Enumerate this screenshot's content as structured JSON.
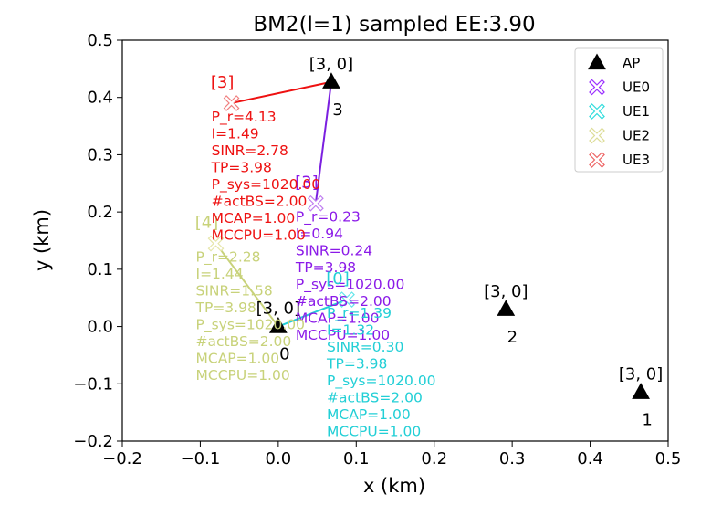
{
  "chart_data": {
    "type": "scatter",
    "title": "BM2(l=1) sampled EE:3.90",
    "xlabel": "x (km)",
    "ylabel": "y (km)",
    "xlim": [
      -0.2,
      0.5
    ],
    "ylim": [
      -0.2,
      0.5
    ],
    "xticks": [
      -0.2,
      -0.1,
      0.0,
      0.1,
      0.2,
      0.3,
      0.4,
      0.5
    ],
    "yticks": [
      -0.2,
      -0.1,
      0.0,
      0.1,
      0.2,
      0.3,
      0.4,
      0.5
    ],
    "xtick_labels": [
      "−0.2",
      "−0.1",
      "0.0",
      "0.1",
      "0.2",
      "0.3",
      "0.4",
      "0.5"
    ],
    "ytick_labels": [
      "−0.2",
      "−0.1",
      "0.0",
      "0.1",
      "0.2",
      "0.3",
      "0.4",
      "0.5"
    ],
    "grid": false,
    "legend_position": "top-right",
    "legend": [
      {
        "label": "AP",
        "marker": "triangle",
        "color": "#000000"
      },
      {
        "label": "UE0",
        "marker": "x",
        "color": "#9b30ff"
      },
      {
        "label": "UE1",
        "marker": "x",
        "color": "#33dddd"
      },
      {
        "label": "UE2",
        "marker": "x",
        "color": "#dddd99"
      },
      {
        "label": "UE3",
        "marker": "x",
        "color": "#ee6666"
      }
    ],
    "aps": [
      {
        "id": "0",
        "x": 0.0,
        "y": 0.0,
        "load": "[3, 0]"
      },
      {
        "id": "1",
        "x": 0.465,
        "y": -0.115,
        "load": "[3, 0]"
      },
      {
        "id": "2",
        "x": 0.292,
        "y": 0.03,
        "load": "[3, 0]"
      },
      {
        "id": "3",
        "x": 0.068,
        "y": 0.427,
        "load": "[3, 0]"
      }
    ],
    "ues": [
      {
        "name": "UE0",
        "x": 0.048,
        "y": 0.215,
        "tag": "[3]",
        "ap": 3,
        "color": "#8b1ae8",
        "link_color": "#7b1fe0",
        "marker_color": "#c080f0",
        "lines": [
          "P_r=0.23",
          "I=0.94",
          "SINR=0.24",
          "TP=3.98",
          "P_sys=1020.00",
          "#actBS=2.00",
          "MCAP=1.00",
          "MCCPU=1.00"
        ]
      },
      {
        "name": "UE1",
        "x": 0.088,
        "y": 0.047,
        "tag": "[0]",
        "ap": 0,
        "color": "#22cfd6",
        "link_color": "#22cfd6",
        "marker_color": "#66e6ea",
        "lines": [
          "P_r=1.39",
          "I=1.32",
          "SINR=0.30",
          "TP=3.98",
          "P_sys=1020.00",
          "#actBS=2.00",
          "MCAP=1.00",
          "MCCPU=1.00"
        ]
      },
      {
        "name": "UE2",
        "x": -0.08,
        "y": 0.145,
        "tag": "[4]",
        "ap": 0,
        "color": "#c8d27a",
        "link_color": "#c8d27a",
        "marker_color": "#e6e6aa",
        "lines": [
          "P_r=2.28",
          "I=1.44",
          "SINR=1.58",
          "TP=3.98",
          "P_sys=1020.00",
          "#actBS=2.00",
          "MCAP=1.00",
          "MCCPU=1.00"
        ]
      },
      {
        "name": "UE3",
        "x": -0.06,
        "y": 0.39,
        "tag": "[3]",
        "ap": 3,
        "color": "#ee1111",
        "link_color": "#ee1111",
        "marker_color": "#f08080",
        "lines": [
          "P_r=4.13",
          "I=1.49",
          "SINR=2.78",
          "TP=3.98",
          "P_sys=1020.00",
          "#actBS=2.00",
          "MCAP=1.00",
          "MCCPU=1.00"
        ]
      }
    ]
  }
}
